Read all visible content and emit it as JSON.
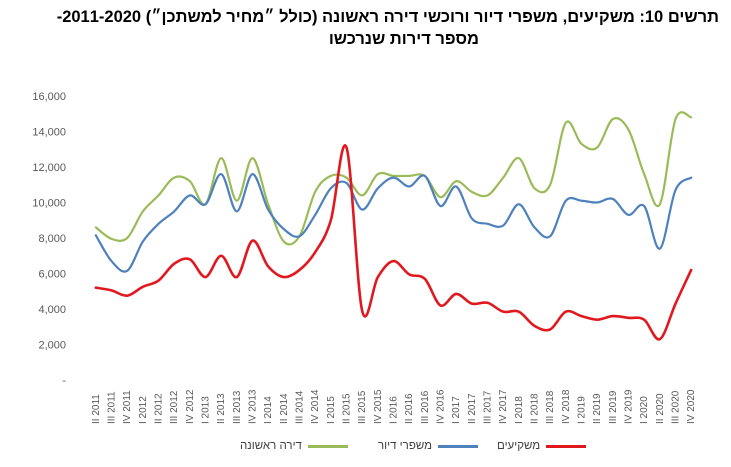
{
  "title_line1": "תרשים 10: משקיעים, משפרי דיור ורוכשי דירה ראשונה (כולל ״מחיר למשתכן״) 2011-2020-",
  "title_line2": "מספר דירות שנרכשו",
  "chart_data": {
    "type": "line",
    "categories": [
      "II 2011",
      "III 2011",
      "IV 2011",
      "I 2012",
      "II 2012",
      "III 2012",
      "IV 2012",
      "I 2013",
      "II 2013",
      "III 2013",
      "IV 2013",
      "I 2014",
      "II 2014",
      "III 2014",
      "IV 2014",
      "I 2015",
      "II 2015",
      "III 2015",
      "IV 2015",
      "I 2016",
      "II 2016",
      "III 2016",
      "IV 2016",
      "I 2017",
      "II 2017",
      "III 2017",
      "IV 2017",
      "I 2018",
      "II 2018",
      "III 2018",
      "IV 2018",
      "I 2019",
      "II 2019",
      "III 2019",
      "IV 2019",
      "I 2020",
      "II 2020",
      "III 2020",
      "IV 2020"
    ],
    "tick_labels": [
      "II 2011",
      "III 2011",
      "IV 2011",
      "I 2012",
      "II 2012",
      "III 2012",
      "IV 2012",
      "I 2013",
      "II 2013",
      "III 2013",
      "IV 2013",
      "I 2014",
      "II 2014",
      "III 2014",
      "IV 2014",
      "I 2015",
      "II 2015",
      "III 2015",
      "IV 2015",
      "I 2016",
      "II 2016",
      "III 2016",
      "IV 2016",
      "I 2017",
      "II 2017",
      "III 2017",
      "IV 2017",
      "I 2018",
      "II 2018",
      "III 2018",
      "IV 2018",
      "I 2019",
      "II 2019",
      "III 2019",
      "IV 2019",
      "I 2020",
      "II 2020",
      "III 2020",
      "IV 2020"
    ],
    "y_tick_labels": [
      "-",
      "2,000",
      "4,000",
      "6,000",
      "8,000",
      "10,000",
      "12,000",
      "14,000",
      "16,000"
    ],
    "ylim": [
      0,
      16000
    ],
    "series": [
      {
        "name": "דירה ראשונה",
        "color": "#9BBB59",
        "values": [
          8600,
          7950,
          8000,
          9500,
          10400,
          11400,
          11200,
          9900,
          12500,
          10100,
          12500,
          9900,
          7800,
          8100,
          10600,
          11500,
          11400,
          10400,
          11600,
          11500,
          11500,
          11500,
          10300,
          11200,
          10600,
          10400,
          11400,
          12500,
          10800,
          11000,
          14500,
          13300,
          13100,
          14700,
          14100,
          11600,
          9900,
          14700,
          14800
        ]
      },
      {
        "name": "משפרי דיור",
        "color": "#4F81BD",
        "values": [
          8150,
          6700,
          6150,
          7800,
          8800,
          9500,
          10400,
          9900,
          11600,
          9500,
          11600,
          9600,
          8500,
          8100,
          9300,
          10800,
          11100,
          9600,
          10800,
          11400,
          10900,
          11500,
          9800,
          10900,
          9100,
          8800,
          8700,
          9900,
          8600,
          8100,
          10100,
          10100,
          10000,
          10200,
          9300,
          9800,
          7400,
          10700,
          11400
        ]
      },
      {
        "name": "משקיעים",
        "color": "#E0191F",
        "values": [
          5200,
          5050,
          4750,
          5250,
          5600,
          6550,
          6800,
          5800,
          7000,
          5800,
          7850,
          6400,
          5800,
          6200,
          7200,
          9000,
          13100,
          3900,
          5800,
          6700,
          5950,
          5700,
          4200,
          4850,
          4300,
          4350,
          3850,
          3850,
          3050,
          2850,
          3850,
          3600,
          3400,
          3600,
          3500,
          3400,
          2300,
          4300,
          6200
        ]
      }
    ]
  }
}
